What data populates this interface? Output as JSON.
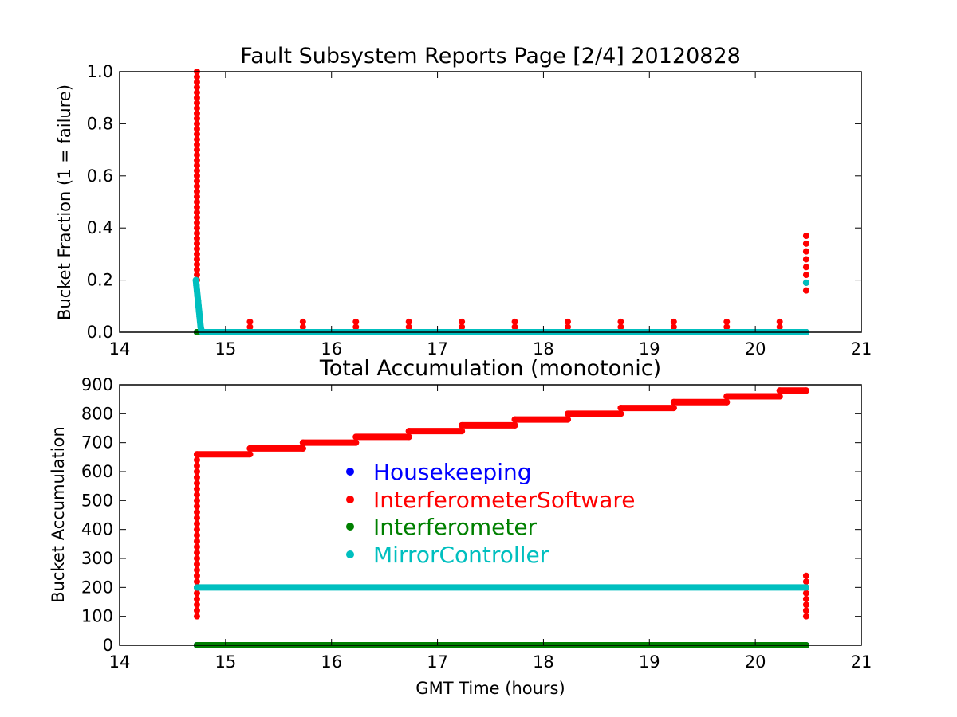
{
  "chart_data": [
    {
      "type": "scatter",
      "title": "Fault Subsystem Reports Page [2/4] 20120828",
      "xlabel": "",
      "ylabel": "Bucket Fraction (1 = failure)",
      "xlim": [
        14,
        21
      ],
      "ylim": [
        0,
        1.0
      ],
      "xticks": [
        "14",
        "15",
        "16",
        "17",
        "18",
        "19",
        "20",
        "21"
      ],
      "yticks": [
        "0.0",
        "0.2",
        "0.4",
        "0.6",
        "0.8",
        "1.0"
      ],
      "grid": false,
      "series": [
        {
          "name": "Housekeeping",
          "color": "#0000ff",
          "points": [
            [
              14.73,
              0.0
            ],
            [
              20.48,
              0.0
            ]
          ]
        },
        {
          "name": "InterferometerSoftware",
          "color": "#ff0000",
          "points": [
            [
              14.73,
              0.2
            ],
            [
              14.73,
              0.22
            ],
            [
              14.73,
              0.24
            ],
            [
              14.73,
              0.26
            ],
            [
              14.73,
              0.28
            ],
            [
              14.73,
              0.3
            ],
            [
              14.73,
              0.32
            ],
            [
              14.73,
              0.34
            ],
            [
              14.73,
              0.36
            ],
            [
              14.73,
              0.38
            ],
            [
              14.73,
              0.4
            ],
            [
              14.73,
              0.42
            ],
            [
              14.73,
              0.44
            ],
            [
              14.73,
              0.46
            ],
            [
              14.73,
              0.48
            ],
            [
              14.73,
              0.5
            ],
            [
              14.73,
              0.52
            ],
            [
              14.73,
              0.54
            ],
            [
              14.73,
              0.56
            ],
            [
              14.73,
              0.58
            ],
            [
              14.73,
              0.6
            ],
            [
              14.73,
              0.62
            ],
            [
              14.73,
              0.64
            ],
            [
              14.73,
              0.66
            ],
            [
              14.73,
              0.68
            ],
            [
              14.73,
              0.7
            ],
            [
              14.73,
              0.72
            ],
            [
              14.73,
              0.74
            ],
            [
              14.73,
              0.76
            ],
            [
              14.73,
              0.78
            ],
            [
              14.73,
              0.8
            ],
            [
              14.73,
              0.82
            ],
            [
              14.73,
              0.84
            ],
            [
              14.73,
              0.86
            ],
            [
              14.73,
              0.88
            ],
            [
              14.73,
              0.9
            ],
            [
              14.73,
              0.92
            ],
            [
              14.73,
              0.94
            ],
            [
              14.73,
              0.96
            ],
            [
              14.73,
              0.98
            ],
            [
              14.73,
              1.0
            ],
            [
              15.23,
              0.0
            ],
            [
              15.23,
              0.02
            ],
            [
              15.23,
              0.04
            ],
            [
              15.73,
              0.0
            ],
            [
              15.73,
              0.02
            ],
            [
              15.73,
              0.04
            ],
            [
              16.23,
              0.0
            ],
            [
              16.23,
              0.02
            ],
            [
              16.23,
              0.04
            ],
            [
              16.73,
              0.0
            ],
            [
              16.73,
              0.02
            ],
            [
              16.73,
              0.04
            ],
            [
              17.23,
              0.0
            ],
            [
              17.23,
              0.02
            ],
            [
              17.23,
              0.04
            ],
            [
              17.73,
              0.0
            ],
            [
              17.73,
              0.02
            ],
            [
              17.73,
              0.04
            ],
            [
              18.23,
              0.0
            ],
            [
              18.23,
              0.02
            ],
            [
              18.23,
              0.04
            ],
            [
              18.73,
              0.0
            ],
            [
              18.73,
              0.02
            ],
            [
              18.73,
              0.04
            ],
            [
              19.23,
              0.0
            ],
            [
              19.23,
              0.02
            ],
            [
              19.23,
              0.04
            ],
            [
              19.73,
              0.0
            ],
            [
              19.73,
              0.02
            ],
            [
              19.73,
              0.04
            ],
            [
              20.23,
              0.0
            ],
            [
              20.23,
              0.02
            ],
            [
              20.23,
              0.04
            ],
            [
              20.48,
              0.16
            ],
            [
              20.48,
              0.19
            ],
            [
              20.48,
              0.22
            ],
            [
              20.48,
              0.25
            ],
            [
              20.48,
              0.28
            ],
            [
              20.48,
              0.31
            ],
            [
              20.48,
              0.34
            ],
            [
              20.48,
              0.37
            ]
          ]
        },
        {
          "name": "Interferometer",
          "color": "#008000",
          "points": [
            [
              14.73,
              0.0
            ],
            [
              20.48,
              0.0
            ]
          ]
        },
        {
          "name": "MirrorController",
          "color": "#00bfbf",
          "points": [
            [
              14.72,
              0.2
            ],
            [
              14.725,
              0.18
            ],
            [
              14.73,
              0.16
            ],
            [
              14.735,
              0.14
            ],
            [
              14.74,
              0.12
            ],
            [
              14.745,
              0.1
            ],
            [
              14.75,
              0.08
            ],
            [
              14.755,
              0.06
            ],
            [
              14.76,
              0.04
            ],
            [
              14.765,
              0.02
            ],
            [
              14.77,
              0.01
            ],
            [
              14.78,
              0.0
            ],
            [
              20.48,
              0.0
            ],
            [
              20.48,
              0.19
            ]
          ]
        }
      ]
    },
    {
      "type": "scatter",
      "title": "Total Accumulation (monotonic)",
      "xlabel": "GMT Time (hours)",
      "ylabel": "Bucket Accumulation",
      "xlim": [
        14,
        21
      ],
      "ylim": [
        0,
        900
      ],
      "xticks": [
        "14",
        "15",
        "16",
        "17",
        "18",
        "19",
        "20",
        "21"
      ],
      "yticks": [
        "0",
        "100",
        "200",
        "300",
        "400",
        "500",
        "600",
        "700",
        "800",
        "900"
      ],
      "grid": false,
      "legend": {
        "position": "center-left",
        "frame": false
      },
      "series": [
        {
          "name": "Housekeeping",
          "color": "#0000ff",
          "points": [
            [
              14.73,
              0
            ],
            [
              20.48,
              0
            ]
          ]
        },
        {
          "name": "InterferometerSoftware",
          "color": "#ff0000",
          "points": [
            [
              14.73,
              100
            ],
            [
              14.73,
              120
            ],
            [
              14.73,
              140
            ],
            [
              14.73,
              160
            ],
            [
              14.73,
              180
            ],
            [
              14.73,
              200
            ],
            [
              14.73,
              220
            ],
            [
              14.73,
              240
            ],
            [
              14.73,
              260
            ],
            [
              14.73,
              280
            ],
            [
              14.73,
              300
            ],
            [
              14.73,
              320
            ],
            [
              14.73,
              340
            ],
            [
              14.73,
              360
            ],
            [
              14.73,
              380
            ],
            [
              14.73,
              400
            ],
            [
              14.73,
              420
            ],
            [
              14.73,
              440
            ],
            [
              14.73,
              460
            ],
            [
              14.73,
              480
            ],
            [
              14.73,
              500
            ],
            [
              14.73,
              520
            ],
            [
              14.73,
              540
            ],
            [
              14.73,
              560
            ],
            [
              14.73,
              580
            ],
            [
              14.73,
              600
            ],
            [
              14.73,
              620
            ],
            [
              14.73,
              640
            ],
            [
              14.73,
              660
            ],
            [
              15.23,
              660
            ],
            [
              15.23,
              680
            ],
            [
              15.73,
              680
            ],
            [
              15.73,
              700
            ],
            [
              16.23,
              700
            ],
            [
              16.23,
              720
            ],
            [
              16.73,
              720
            ],
            [
              16.73,
              740
            ],
            [
              17.23,
              740
            ],
            [
              17.23,
              760
            ],
            [
              17.73,
              760
            ],
            [
              17.73,
              780
            ],
            [
              18.23,
              780
            ],
            [
              18.23,
              800
            ],
            [
              18.73,
              800
            ],
            [
              18.73,
              820
            ],
            [
              19.23,
              820
            ],
            [
              19.23,
              840
            ],
            [
              19.73,
              840
            ],
            [
              19.73,
              860
            ],
            [
              20.23,
              860
            ],
            [
              20.23,
              880
            ],
            [
              20.48,
              880
            ],
            [
              20.48,
              100
            ],
            [
              20.48,
              120
            ],
            [
              20.48,
              140
            ],
            [
              20.48,
              160
            ],
            [
              20.48,
              180
            ],
            [
              20.48,
              200
            ],
            [
              20.48,
              220
            ],
            [
              20.48,
              240
            ]
          ]
        },
        {
          "name": "Interferometer",
          "color": "#008000",
          "points": [
            [
              14.73,
              0
            ],
            [
              20.48,
              0
            ]
          ]
        },
        {
          "name": "MirrorController",
          "color": "#00bfbf",
          "points": [
            [
              14.73,
              200
            ],
            [
              20.48,
              200
            ]
          ]
        }
      ]
    }
  ]
}
